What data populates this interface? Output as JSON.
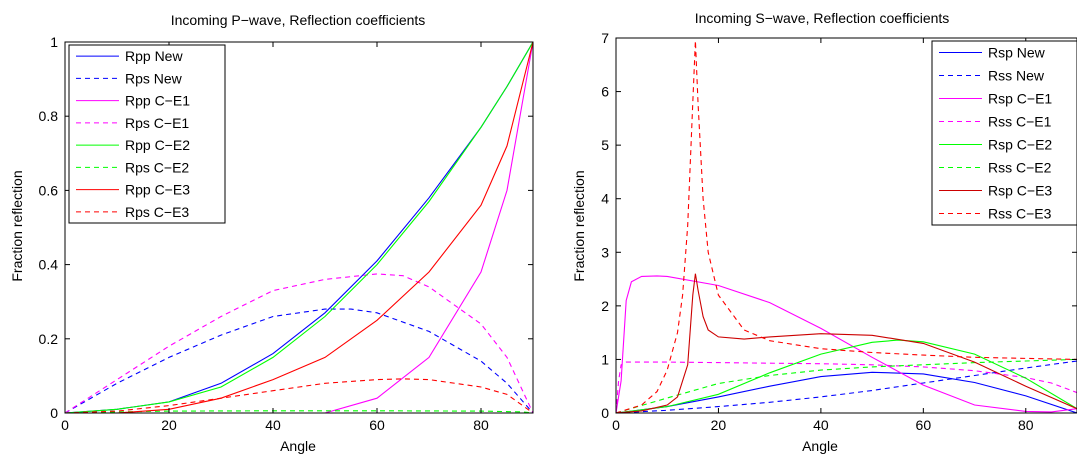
{
  "chart_data": [
    {
      "type": "line",
      "title": "Incoming P−wave, Reflection coefficients",
      "xlabel": "Angle",
      "ylabel": "Fraction reflection",
      "xlim": [
        0,
        90
      ],
      "ylim": [
        0,
        1
      ],
      "xticks": [
        0,
        20,
        40,
        60,
        80
      ],
      "yticks": [
        0,
        0.2,
        0.4,
        0.6,
        0.8,
        1
      ],
      "ytick_labels": [
        "0",
        "0.2",
        "0.4",
        "0.6",
        "0.8",
        "1"
      ],
      "grid": false,
      "legend_position": "top-left",
      "series": [
        {
          "name": "Rpp New",
          "color": "#0000ff",
          "dash": "solid",
          "x": [
            0,
            10,
            20,
            30,
            40,
            50,
            60,
            70,
            80,
            85,
            90
          ],
          "y": [
            0,
            0.01,
            0.03,
            0.08,
            0.16,
            0.27,
            0.41,
            0.58,
            0.77,
            0.88,
            1.0
          ]
        },
        {
          "name": "Rps New",
          "color": "#0000ff",
          "dash": "dashed",
          "x": [
            0,
            10,
            20,
            30,
            40,
            50,
            55,
            60,
            70,
            80,
            85,
            90
          ],
          "y": [
            0,
            0.08,
            0.15,
            0.21,
            0.26,
            0.28,
            0.28,
            0.27,
            0.22,
            0.14,
            0.08,
            0
          ]
        },
        {
          "name": "Rpp C−E1",
          "color": "#ff00ff",
          "dash": "solid",
          "x": [
            0,
            10,
            20,
            30,
            40,
            50,
            60,
            70,
            80,
            85,
            90
          ],
          "y": [
            0,
            0,
            0,
            0,
            0,
            0,
            0.04,
            0.15,
            0.38,
            0.6,
            1.0
          ]
        },
        {
          "name": "Rps C−E1",
          "color": "#ff00ff",
          "dash": "dashed",
          "x": [
            0,
            10,
            20,
            30,
            40,
            50,
            60,
            65,
            70,
            80,
            85,
            90
          ],
          "y": [
            0,
            0.09,
            0.18,
            0.26,
            0.33,
            0.36,
            0.375,
            0.37,
            0.34,
            0.24,
            0.15,
            0
          ]
        },
        {
          "name": "Rpp C−E2",
          "color": "#00ff00",
          "dash": "solid",
          "x": [
            0,
            10,
            20,
            30,
            40,
            50,
            60,
            70,
            80,
            85,
            90
          ],
          "y": [
            0,
            0.01,
            0.03,
            0.07,
            0.15,
            0.26,
            0.4,
            0.57,
            0.77,
            0.88,
            1.0
          ]
        },
        {
          "name": "Rps C−E2",
          "color": "#00ff00",
          "dash": "dashed",
          "x": [
            0,
            10,
            20,
            40,
            60,
            80,
            88,
            90
          ],
          "y": [
            0,
            0.003,
            0.005,
            0.006,
            0.006,
            0.005,
            0.003,
            0
          ]
        },
        {
          "name": "Rpp C−E3",
          "color": "#ff0000",
          "dash": "solid",
          "x": [
            0,
            10,
            20,
            30,
            40,
            50,
            60,
            70,
            80,
            85,
            90
          ],
          "y": [
            0,
            0,
            0.01,
            0.04,
            0.09,
            0.15,
            0.25,
            0.38,
            0.56,
            0.72,
            1.0
          ]
        },
        {
          "name": "Rps C−E3",
          "color": "#ff0000",
          "dash": "dashed",
          "x": [
            0,
            10,
            20,
            30,
            40,
            50,
            60,
            65,
            70,
            80,
            85,
            90
          ],
          "y": [
            0,
            0.005,
            0.02,
            0.04,
            0.06,
            0.08,
            0.09,
            0.092,
            0.09,
            0.07,
            0.05,
            0
          ]
        }
      ]
    },
    {
      "type": "line",
      "title": "Incoming S−wave, Reflection coefficients",
      "xlabel": "Angle",
      "ylabel": "Fraction reflection",
      "xlim": [
        0,
        90
      ],
      "ylim": [
        0,
        7
      ],
      "xticks": [
        0,
        20,
        40,
        60,
        80
      ],
      "yticks": [
        0,
        1,
        2,
        3,
        4,
        5,
        6,
        7
      ],
      "ytick_labels": [
        "0",
        "1",
        "2",
        "3",
        "4",
        "5",
        "6",
        "7"
      ],
      "grid": false,
      "legend_position": "top-right",
      "series": [
        {
          "name": "Rsp New",
          "color": "#0000ff",
          "dash": "solid",
          "x": [
            0,
            5,
            10,
            20,
            30,
            40,
            50,
            60,
            70,
            80,
            90
          ],
          "y": [
            0,
            0.06,
            0.12,
            0.3,
            0.5,
            0.68,
            0.76,
            0.73,
            0.57,
            0.32,
            0.0
          ]
        },
        {
          "name": "Rss New",
          "color": "#0000ff",
          "dash": "dashed",
          "x": [
            0,
            10,
            20,
            30,
            40,
            50,
            60,
            70,
            80,
            90
          ],
          "y": [
            0,
            0.05,
            0.12,
            0.2,
            0.3,
            0.42,
            0.56,
            0.7,
            0.84,
            0.97
          ]
        },
        {
          "name": "Rsp C−E1",
          "color": "#ff00ff",
          "dash": "solid",
          "x": [
            0,
            1,
            2,
            3,
            5,
            8,
            10,
            20,
            30,
            40,
            50,
            60,
            70,
            80,
            85,
            90
          ],
          "y": [
            0,
            0.6,
            2.1,
            2.45,
            2.55,
            2.56,
            2.55,
            2.38,
            2.06,
            1.58,
            1.04,
            0.52,
            0.15,
            0.03,
            0.02,
            0.08
          ]
        },
        {
          "name": "Rss C−E1",
          "color": "#ff00ff",
          "dash": "dashed",
          "x": [
            0,
            0.5,
            1,
            2,
            10,
            20,
            30,
            40,
            50,
            60,
            70,
            80,
            85,
            90
          ],
          "y": [
            0,
            0.6,
            0.9,
            0.95,
            0.95,
            0.94,
            0.93,
            0.92,
            0.9,
            0.86,
            0.79,
            0.66,
            0.56,
            0.38
          ]
        },
        {
          "name": "Rsp C−E2",
          "color": "#00ff00",
          "dash": "solid",
          "x": [
            0,
            10,
            20,
            30,
            40,
            50,
            55,
            60,
            70,
            80,
            90
          ],
          "y": [
            0,
            0.12,
            0.35,
            0.75,
            1.1,
            1.32,
            1.36,
            1.33,
            1.1,
            0.65,
            0.08
          ]
        },
        {
          "name": "Rss C−E2",
          "color": "#00ff00",
          "dash": "dashed",
          "x": [
            0,
            10,
            20,
            30,
            40,
            50,
            60,
            70,
            80,
            90
          ],
          "y": [
            0,
            0.28,
            0.55,
            0.7,
            0.8,
            0.86,
            0.9,
            0.94,
            0.97,
            1.0
          ]
        },
        {
          "name": "Rsp C−E3",
          "color": "#cc0000",
          "dash": "solid",
          "x": [
            0,
            5,
            10,
            12,
            14,
            15,
            15.5,
            16,
            17,
            18,
            20,
            25,
            30,
            40,
            50,
            60,
            70,
            80,
            90
          ],
          "y": [
            0,
            0.04,
            0.15,
            0.3,
            0.9,
            2.2,
            2.6,
            2.3,
            1.8,
            1.55,
            1.42,
            1.38,
            1.42,
            1.48,
            1.45,
            1.3,
            0.95,
            0.5,
            0.08
          ]
        },
        {
          "name": "Rss C−E3",
          "color": "#ff0000",
          "dash": "dashed",
          "x": [
            0,
            5,
            8,
            10,
            12,
            13,
            14,
            15,
            15.5,
            16,
            17,
            18,
            20,
            25,
            30,
            40,
            50,
            60,
            70,
            80,
            90
          ],
          "y": [
            0,
            0.15,
            0.4,
            0.8,
            1.5,
            2.2,
            3.5,
            5.8,
            6.95,
            5.8,
            4.0,
            3.0,
            2.2,
            1.55,
            1.35,
            1.2,
            1.13,
            1.08,
            1.04,
            1.02,
            1.0
          ]
        }
      ]
    }
  ]
}
